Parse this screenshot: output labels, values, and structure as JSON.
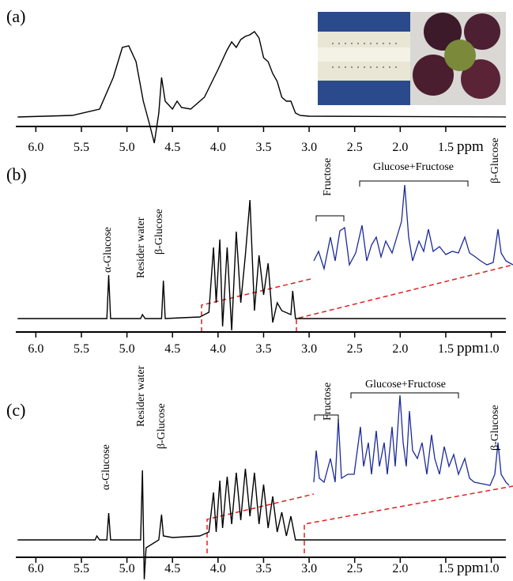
{
  "chart_data": [
    {
      "type": "line",
      "label": "(a)",
      "x_label": "ppm",
      "x": [
        6.2,
        5.6,
        5.3,
        5.15,
        5.05,
        4.98,
        4.9,
        4.82,
        4.75,
        4.7,
        4.65,
        4.62,
        4.58,
        4.5,
        4.45,
        4.4,
        4.3,
        4.15,
        4.0,
        3.9,
        3.85,
        3.8,
        3.75,
        3.7,
        3.65,
        3.6,
        3.55,
        3.5,
        3.45,
        3.4,
        3.35,
        3.3,
        3.25,
        3.2,
        3.15,
        3.1,
        3.0,
        0.84
      ],
      "series": [
        {
          "color": "#000000",
          "values": [
            0,
            2,
            10,
            50,
            88,
            90,
            70,
            20,
            -10,
            -33,
            5,
            50,
            20,
            10,
            20,
            12,
            10,
            25,
            60,
            85,
            95,
            88,
            98,
            102,
            104,
            108,
            100,
            75,
            70,
            55,
            45,
            25,
            20,
            20,
            5,
            2,
            1,
            0
          ]
        }
      ],
      "xlim": [
        6.22,
        0.84
      ],
      "ylim": [
        -35,
        118
      ],
      "xticks": [
        {
          "value": 6.0,
          "label": "6.0"
        },
        5.5,
        {
          "value": 5.0,
          "label": "5.0"
        },
        4.5,
        {
          "value": 4.0,
          "label": "4.0"
        },
        3.5,
        {
          "value": 3.0,
          "label": "3.0"
        },
        2.5,
        {
          "value": 2.0,
          "label": "2.0"
        },
        1.5
      ],
      "annotations": []
    },
    {
      "type": "line",
      "label": "(b)",
      "x_label": "ppm",
      "x": [
        6.2,
        5.22,
        5.2,
        5.18,
        4.85,
        4.83,
        4.8,
        4.62,
        4.6,
        4.58,
        4.4,
        4.2,
        4.1,
        4.05,
        4.02,
        3.98,
        3.95,
        3.9,
        3.85,
        3.8,
        3.75,
        3.7,
        3.65,
        3.6,
        3.55,
        3.5,
        3.45,
        3.4,
        3.35,
        3.3,
        3.2,
        3.18,
        3.15,
        0.84
      ],
      "series": [
        {
          "color": "#000000",
          "values": [
            0,
            0,
            55,
            0,
            0,
            5,
            0,
            0,
            48,
            0,
            1,
            2,
            8,
            90,
            20,
            100,
            -10,
            90,
            -15,
            110,
            20,
            80,
            150,
            10,
            80,
            30,
            70,
            -5,
            20,
            10,
            5,
            35,
            0,
            0
          ]
        }
      ],
      "xlim": [
        6.22,
        0.84
      ],
      "ylim": [
        -20,
        170
      ],
      "xticks": [
        {
          "value": 6.0,
          "label": "6.0"
        },
        5.5,
        {
          "value": 5.0,
          "label": "5.0"
        },
        4.5,
        {
          "value": 4.0,
          "label": "4.0"
        },
        3.5,
        {
          "value": 3.0,
          "label": "3.0"
        },
        2.5,
        {
          "value": 2.0,
          "label": "2.0"
        },
        1.5,
        {
          "value": 1.0,
          "label": "1.0"
        }
      ],
      "annotations": [
        "α-Glucose",
        "Resider water",
        "β-Glucose",
        "Fructose",
        "Glucose+Fructose",
        "β-Glucose"
      ]
    },
    {
      "type": "line",
      "label": "(c)",
      "x_label": "ppm",
      "x": [
        6.2,
        5.35,
        5.33,
        5.3,
        5.22,
        5.2,
        5.18,
        4.85,
        4.83,
        4.81,
        4.79,
        4.65,
        4.62,
        4.6,
        4.5,
        4.2,
        4.1,
        4.05,
        4.02,
        3.98,
        3.95,
        3.9,
        3.85,
        3.8,
        3.75,
        3.7,
        3.65,
        3.6,
        3.55,
        3.5,
        3.45,
        3.4,
        3.35,
        3.3,
        3.25,
        3.2,
        3.15,
        0.84
      ],
      "series": [
        {
          "color": "#000000",
          "values": [
            0,
            0,
            5,
            0,
            0,
            34,
            0,
            0,
            88,
            -50,
            -10,
            0,
            32,
            5,
            3,
            5,
            10,
            60,
            10,
            75,
            15,
            80,
            20,
            85,
            25,
            90,
            30,
            85,
            20,
            70,
            15,
            55,
            10,
            35,
            5,
            30,
            0,
            0
          ]
        }
      ],
      "xlim": [
        6.22,
        0.84
      ],
      "ylim": [
        -50,
        140
      ],
      "xticks": [
        {
          "value": 6.0,
          "label": "6.0"
        },
        5.5,
        {
          "value": 5.0,
          "label": "5.0"
        },
        4.5,
        {
          "value": 4.0,
          "label": "4.0"
        },
        3.5,
        {
          "value": 3.0,
          "label": "3.0"
        },
        2.5,
        {
          "value": 2.0,
          "label": "2.0"
        },
        1.5,
        {
          "value": 1.0,
          "label": "1.0"
        }
      ],
      "annotations": [
        "α-Glucose",
        "Resider water",
        "β-Glucose",
        "Fructose",
        "Glucose+Fructose",
        "β-Glucose"
      ]
    }
  ]
}
